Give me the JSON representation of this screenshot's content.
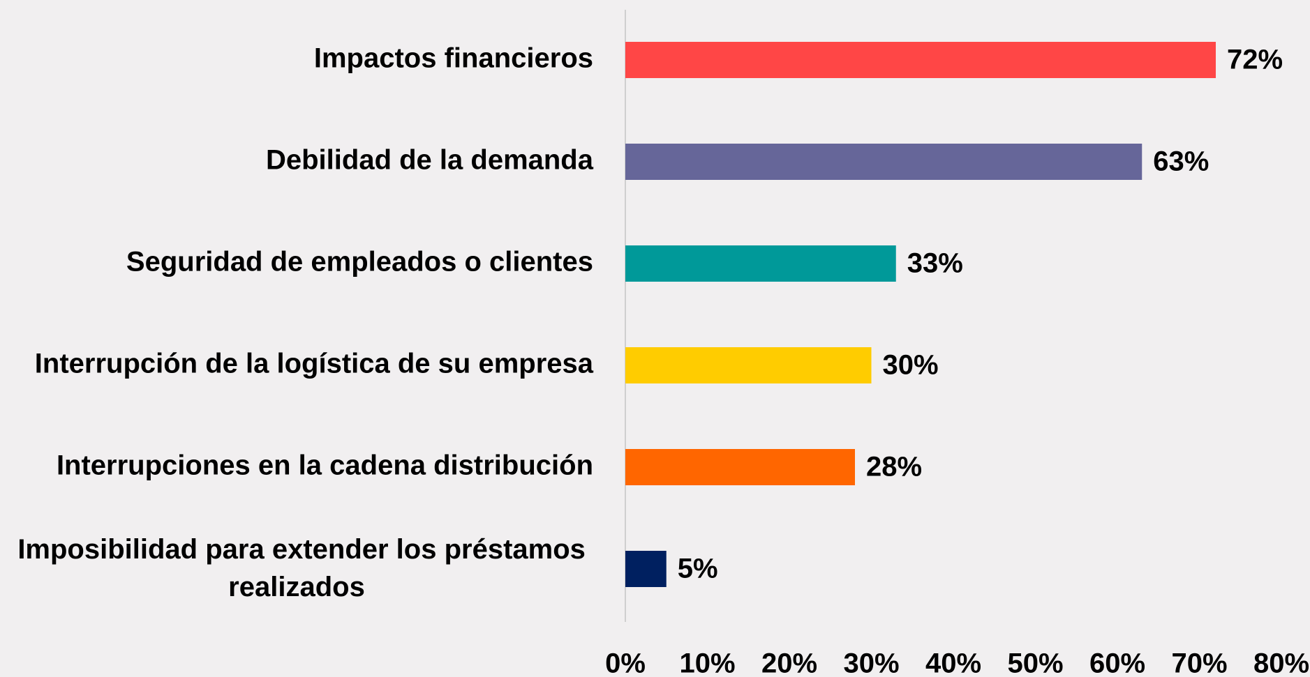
{
  "chart_data": {
    "type": "bar",
    "orientation": "horizontal",
    "categories": [
      "Impactos financieros",
      "Debilidad de la demanda",
      "Seguridad de empleados o clientes",
      "Interrupción de la logística de su empresa",
      "Interrupciones en la cadena distribución",
      "Imposibilidad para extender los préstamos realizados"
    ],
    "values": [
      72,
      63,
      33,
      30,
      28,
      5
    ],
    "value_labels": [
      "72%",
      "63%",
      "33%",
      "30%",
      "28%",
      "5%"
    ],
    "colors": [
      "#ff4646",
      "#666699",
      "#009999",
      "#ffcc00",
      "#ff6600",
      "#002060"
    ],
    "xlim": [
      0,
      80
    ],
    "xticks": [
      {
        "value": 0,
        "label": "0%"
      },
      {
        "value": 10,
        "label": "10%"
      },
      {
        "value": 20,
        "label": "20%"
      },
      {
        "value": 30,
        "label": "30%"
      },
      {
        "value": 40,
        "label": "40%"
      },
      {
        "value": 50,
        "label": "50%"
      },
      {
        "value": 60,
        "label": "60%"
      },
      {
        "value": 70,
        "label": "70%"
      },
      {
        "value": 80,
        "label": "80%"
      }
    ],
    "grid": false
  }
}
